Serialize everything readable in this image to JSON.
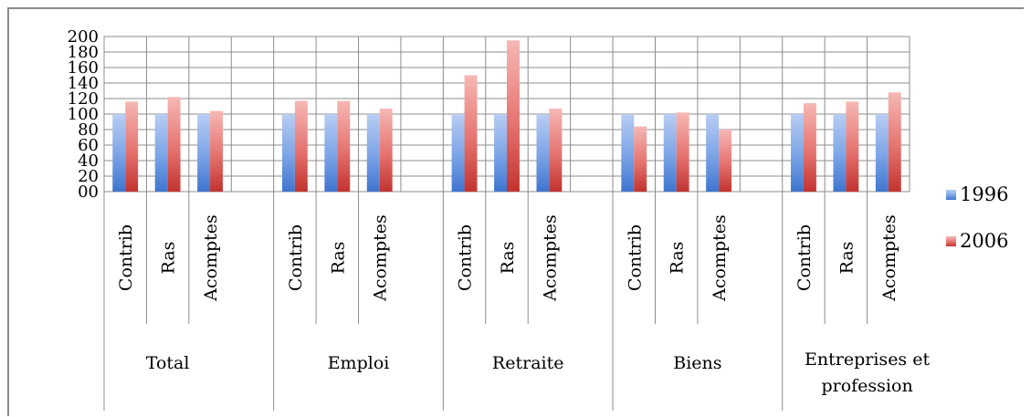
{
  "chart_data": {
    "type": "bar",
    "title": "",
    "xlabel": "",
    "ylabel": "",
    "ylim": [
      0,
      200
    ],
    "ytick_labels": [
      "00",
      "20",
      "40",
      "60",
      "80",
      "100",
      "120",
      "140",
      "160",
      "180",
      "200"
    ],
    "grid": true,
    "legend_position": "right",
    "groups": [
      "Total",
      "Emploi",
      "Retraite",
      "Biens",
      "Entreprises et profession"
    ],
    "categories": [
      {
        "group": "Total",
        "label": "Contrib"
      },
      {
        "group": "Total",
        "label": "Ras"
      },
      {
        "group": "Total",
        "label": "Acomptes"
      },
      {
        "group": "Emploi",
        "label": "Contrib"
      },
      {
        "group": "Emploi",
        "label": "Ras"
      },
      {
        "group": "Emploi",
        "label": "Acomptes"
      },
      {
        "group": "Retraite",
        "label": "Contrib"
      },
      {
        "group": "Retraite",
        "label": "Ras"
      },
      {
        "group": "Retraite",
        "label": "Acomptes"
      },
      {
        "group": "Biens",
        "label": "Contrib"
      },
      {
        "group": "Biens",
        "label": "Ras"
      },
      {
        "group": "Biens",
        "label": "Acomptes"
      },
      {
        "group": "Entreprises et profession",
        "label": "Contrib"
      },
      {
        "group": "Entreprises et profession",
        "label": "Ras"
      },
      {
        "group": "Entreprises et profession",
        "label": "Acomptes"
      }
    ],
    "series": [
      {
        "name": "1996",
        "color": "#4f81bd",
        "values": [
          100,
          100,
          100,
          100,
          100,
          100,
          100,
          100,
          100,
          100,
          100,
          100,
          100,
          100,
          100
        ]
      },
      {
        "name": "2006",
        "color": "#c0504d",
        "values": [
          116,
          122,
          104,
          117,
          117,
          107,
          150,
          195,
          107,
          84,
          102,
          80,
          114,
          116,
          128
        ]
      }
    ]
  }
}
